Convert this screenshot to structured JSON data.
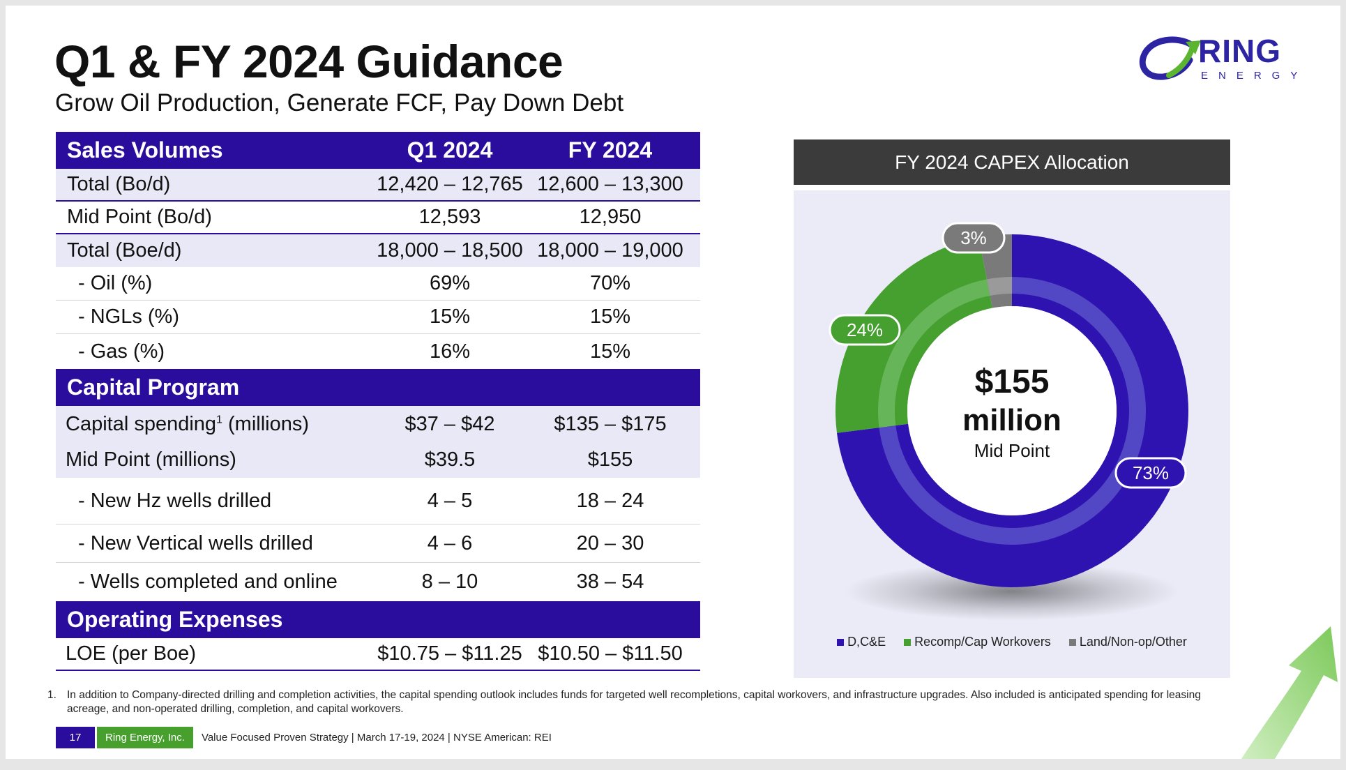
{
  "header": {
    "title": "Q1 & FY 2024 Guidance",
    "subtitle": "Grow Oil Production, Generate FCF, Pay Down Debt"
  },
  "logo": {
    "word": "RING",
    "sub": "ENERGY"
  },
  "table": {
    "sales": {
      "heading": "Sales Volumes",
      "col_q1": "Q1 2024",
      "col_fy": "FY 2024",
      "rows": [
        {
          "label": "Total (Bo/d)",
          "q1": "12,420 – 12,765",
          "fy": "12,600 – 13,300"
        },
        {
          "label": "Mid Point (Bo/d)",
          "q1": "12,593",
          "fy": "12,950"
        },
        {
          "label": "Total (Boe/d)",
          "q1": "18,000 – 18,500",
          "fy": "18,000 – 19,000"
        },
        {
          "label": "- Oil (%)",
          "q1": "69%",
          "fy": "70%"
        },
        {
          "label": "- NGLs (%)",
          "q1": "15%",
          "fy": "15%"
        },
        {
          "label": "- Gas (%)",
          "q1": "16%",
          "fy": "15%"
        }
      ]
    },
    "capital": {
      "heading": "Capital Program",
      "rows": [
        {
          "label": "Capital spending",
          "sup": "1",
          "label_suffix": " (millions)",
          "q1": "$37 – $42",
          "fy": "$135 – $175"
        },
        {
          "label": "Mid Point (millions)",
          "q1": "$39.5",
          "fy": "$155"
        },
        {
          "label": "- New Hz wells drilled",
          "q1": "4 – 5",
          "fy": "18 – 24"
        },
        {
          "label": "- New Vertical wells drilled",
          "q1": "4 – 6",
          "fy": "20 – 30"
        },
        {
          "label": "- Wells completed and online",
          "q1": "8 – 10",
          "fy": "38 – 54"
        }
      ]
    },
    "opex": {
      "heading": "Operating Expenses",
      "rows": [
        {
          "label": "LOE (per Boe)",
          "q1": "$10.75 – $11.25",
          "fy": "$10.50 – $11.50"
        }
      ]
    }
  },
  "chart_data": {
    "type": "pie",
    "title": "FY 2024 CAPEX Allocation",
    "categories": [
      "D,C&E",
      "Recomp/Cap Workovers",
      "Land/Non-op/Other"
    ],
    "values": [
      73,
      24,
      3
    ],
    "labels": [
      "73%",
      "24%",
      "3%"
    ],
    "colors": [
      "#2f13b0",
      "#46a02f",
      "#7a7a7a"
    ],
    "center_value": "$155",
    "center_unit": "million",
    "center_caption": "Mid Point",
    "legend_position": "bottom"
  },
  "footnote": {
    "number": "1.",
    "text": "In addition to Company-directed drilling and completion activities, the capital spending outlook includes funds for targeted well recompletions, capital workovers, and infrastructure upgrades. Also included is anticipated spending for leasing acreage, and non-operated drilling, completion, and capital workovers."
  },
  "footer": {
    "page": "17",
    "company": "Ring Energy, Inc.",
    "text": "Value Focused Proven Strategy  | March 17-19, 2024 |  NYSE American: REI"
  }
}
